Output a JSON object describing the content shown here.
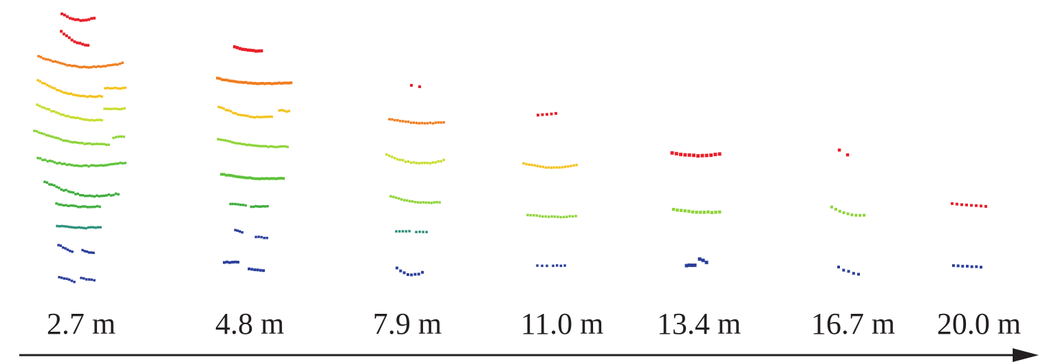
{
  "figure": {
    "distance_labels": [
      "2.7 m",
      "4.8 m",
      "7.9 m",
      "11.0 m",
      "13.4 m",
      "16.7 m",
      "20.0 m"
    ],
    "axis_arrow_color": "#231f20",
    "ring_colors": {
      "red": "#e8202a",
      "red_orange": "#ec3b22",
      "orange": "#f07d1f",
      "yellow": "#f4c21c",
      "yellow_green": "#c8dc2e",
      "light_green": "#8fd43a",
      "green": "#5ec23a",
      "green2": "#3fae3e",
      "teal": "#2a8f7a",
      "blue": "#2b3f9c"
    }
  }
}
